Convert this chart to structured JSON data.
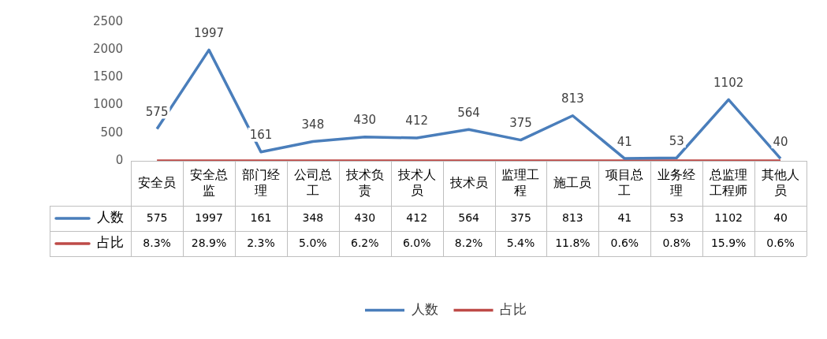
{
  "chart_data": {
    "type": "line",
    "categories": [
      "安全员",
      "安全总监",
      "部门经理",
      "公司总工",
      "技术负责",
      "技术人员",
      "技术员",
      "监理工程",
      "施工员",
      "项目总工",
      "业务经理",
      "总监理工程师",
      "其他人员"
    ],
    "ylim": [
      0,
      2500
    ],
    "yticks": [
      0,
      500,
      1000,
      1500,
      2000,
      2500
    ],
    "grid": false,
    "legend": "bottom",
    "marker": "none",
    "line_style": "solid",
    "series": [
      {
        "name": "人数",
        "color": "#4a7ebb",
        "values": [
          575,
          1997,
          161,
          348,
          430,
          412,
          564,
          375,
          813,
          41,
          53,
          1102,
          40
        ],
        "value_labels": [
          "575",
          "1997",
          "161",
          "348",
          "430",
          "412",
          "564",
          "375",
          "813",
          "41",
          "53",
          "1102",
          "40"
        ],
        "data_labels": true
      },
      {
        "name": "占比",
        "color": "#be4b48",
        "values": [
          0.083,
          0.289,
          0.023,
          0.05,
          0.062,
          0.06,
          0.082,
          0.054,
          0.118,
          0.006,
          0.008,
          0.159,
          0.006
        ],
        "value_labels": [
          "8.3%",
          "28.9%",
          "2.3%",
          "5.0%",
          "6.2%",
          "6.0%",
          "8.2%",
          "5.4%",
          "11.8%",
          "0.6%",
          "0.8%",
          "15.9%",
          "0.6%"
        ]
      }
    ]
  }
}
